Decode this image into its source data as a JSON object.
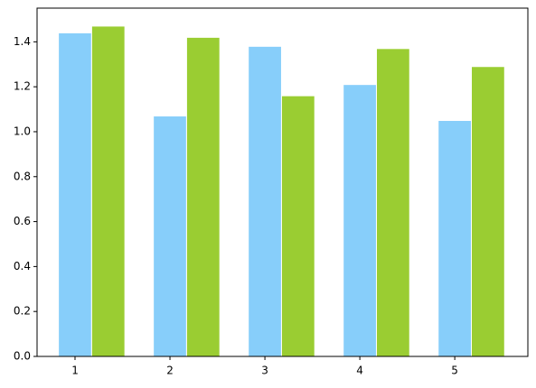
{
  "chart_data": {
    "type": "bar",
    "x": [
      1,
      2,
      3,
      4,
      5
    ],
    "series": [
      {
        "color": "#87cefa",
        "values": [
          1.44,
          1.07,
          1.38,
          1.21,
          1.05
        ]
      },
      {
        "color": "#9acd32",
        "values": [
          1.47,
          1.42,
          1.16,
          1.37,
          1.29
        ]
      }
    ],
    "xlim": [
      0.6,
      5.77
    ],
    "xticks": [
      1,
      2,
      3,
      4,
      5
    ],
    "ylim": [
      0,
      1.55
    ],
    "yticks": [
      {
        "value": 0,
        "label": "0.0"
      },
      {
        "value": 0.2,
        "label": "0.2"
      },
      {
        "value": 0.4,
        "label": "0.4"
      },
      {
        "value": 0.6,
        "label": "0.6"
      },
      {
        "value": 0.8,
        "label": "0.8"
      },
      {
        "value": 1,
        "label": "1.0"
      },
      {
        "value": 1.2,
        "label": "1.2"
      },
      {
        "value": 1.4,
        "label": "1.4"
      }
    ]
  }
}
